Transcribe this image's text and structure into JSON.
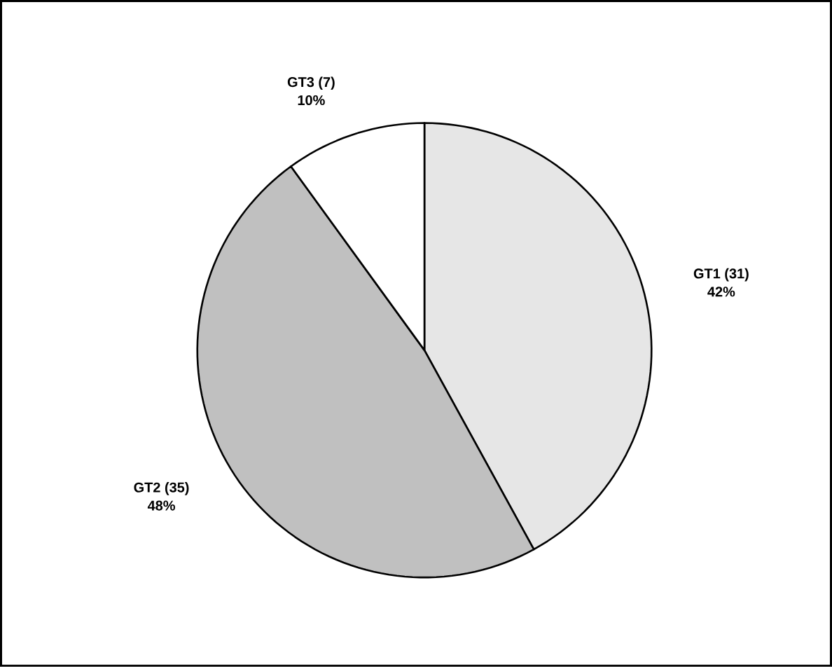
{
  "chart_data": {
    "type": "pie",
    "categories": [
      "GT1 (31)",
      "GT2 (35)",
      "GT3 (7)"
    ],
    "values": [
      42,
      48,
      10
    ],
    "value_labels": [
      "42%",
      "48%",
      "10%"
    ],
    "colors": [
      "#e6e6e6",
      "#c0c0c0",
      "#ffffff"
    ]
  }
}
